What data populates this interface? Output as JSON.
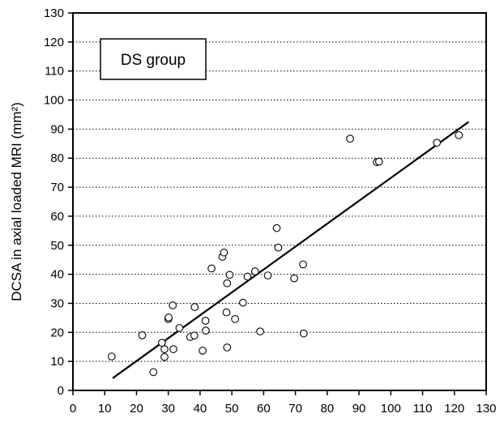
{
  "chart_data": {
    "type": "scatter",
    "title": "",
    "legend_box_label": "DS group",
    "xlabel": "",
    "ylabel": "DCSA in axial loaded MRI (mm²)",
    "xlim": [
      0,
      130
    ],
    "ylim": [
      0,
      130
    ],
    "x_ticks": [
      "0",
      "10",
      "20",
      "30",
      "40",
      "50",
      "60",
      "70",
      "80",
      "90",
      "100",
      "110",
      "120",
      "130"
    ],
    "y_ticks": [
      "0",
      "10",
      "20",
      "30",
      "40",
      "50",
      "60",
      "70",
      "80",
      "90",
      "100",
      "110",
      "120",
      "130"
    ],
    "grid": "horizontal dotted",
    "legend_box_position": "top-left",
    "marker": "open-circle",
    "colors": {
      "marker": "#000000",
      "line": "#000000",
      "grid": "#000000"
    },
    "regression_line": {
      "x": [
        12.5,
        124.5
      ],
      "y": [
        4.2,
        92.5
      ]
    },
    "points": [
      {
        "x": 12.2,
        "y": 11.7
      },
      {
        "x": 21.8,
        "y": 19.0
      },
      {
        "x": 25.3,
        "y": 6.3
      },
      {
        "x": 28.0,
        "y": 16.4
      },
      {
        "x": 28.8,
        "y": 11.5
      },
      {
        "x": 28.8,
        "y": 14.2
      },
      {
        "x": 30.0,
        "y": 24.6
      },
      {
        "x": 30.1,
        "y": 25.1
      },
      {
        "x": 31.4,
        "y": 29.3
      },
      {
        "x": 31.6,
        "y": 14.2
      },
      {
        "x": 33.5,
        "y": 21.5
      },
      {
        "x": 36.9,
        "y": 18.4
      },
      {
        "x": 38.2,
        "y": 18.9
      },
      {
        "x": 38.3,
        "y": 28.7
      },
      {
        "x": 40.8,
        "y": 13.7
      },
      {
        "x": 41.7,
        "y": 24.0
      },
      {
        "x": 41.8,
        "y": 20.6
      },
      {
        "x": 43.6,
        "y": 42.0
      },
      {
        "x": 47.0,
        "y": 46.0
      },
      {
        "x": 47.5,
        "y": 47.5
      },
      {
        "x": 48.3,
        "y": 26.9
      },
      {
        "x": 48.5,
        "y": 36.9
      },
      {
        "x": 48.5,
        "y": 14.8
      },
      {
        "x": 49.3,
        "y": 39.8
      },
      {
        "x": 51.0,
        "y": 24.6
      },
      {
        "x": 53.5,
        "y": 30.2
      },
      {
        "x": 54.9,
        "y": 39.2
      },
      {
        "x": 57.3,
        "y": 41.0
      },
      {
        "x": 58.9,
        "y": 20.3
      },
      {
        "x": 61.3,
        "y": 39.6
      },
      {
        "x": 64.1,
        "y": 55.9
      },
      {
        "x": 64.6,
        "y": 49.2
      },
      {
        "x": 69.6,
        "y": 38.6
      },
      {
        "x": 72.4,
        "y": 43.4
      },
      {
        "x": 72.6,
        "y": 19.6
      },
      {
        "x": 87.2,
        "y": 86.7
      },
      {
        "x": 95.6,
        "y": 78.6
      },
      {
        "x": 96.3,
        "y": 78.8
      },
      {
        "x": 114.5,
        "y": 85.3
      },
      {
        "x": 121.4,
        "y": 87.9
      }
    ]
  }
}
